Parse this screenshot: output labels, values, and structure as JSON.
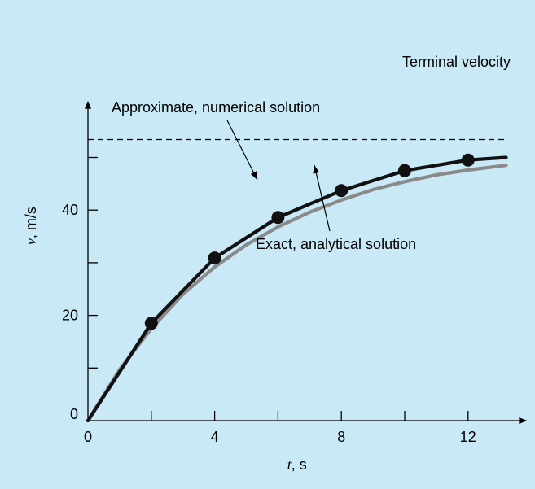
{
  "chart_data": {
    "type": "line",
    "xlabel_var": "t",
    "xlabel_unit": ", s",
    "ylabel_var": "v",
    "ylabel_unit": ", m/s",
    "xlim": [
      0,
      13.3
    ],
    "ylim": [
      0,
      58
    ],
    "x_ticks": [
      2,
      4,
      6,
      8,
      10,
      12
    ],
    "x_tick_labels": [
      "0",
      "4",
      "8",
      "12"
    ],
    "x_tick_label_values": [
      0,
      4,
      8,
      12
    ],
    "y_ticks": [
      10,
      20,
      30,
      40,
      50
    ],
    "y_tick_labels": [
      "0",
      "20",
      "40"
    ],
    "y_tick_label_values": [
      0,
      20,
      40
    ],
    "terminal_velocity": 53.4,
    "series": [
      {
        "name": "Approximate, numerical solution",
        "style": "line-with-markers",
        "color": "#111111",
        "x": [
          0,
          2,
          4,
          6,
          8,
          10,
          12,
          13.2
        ],
        "y": [
          0,
          18.5,
          30.9,
          38.6,
          43.7,
          47.5,
          49.5,
          50.0
        ]
      },
      {
        "name": "Exact, analytical solution",
        "style": "smooth-line",
        "color": "#8a8a8a",
        "x": [
          0,
          1,
          2,
          3,
          4,
          5,
          6,
          7,
          8,
          9,
          10,
          11,
          12,
          13.2
        ],
        "y": [
          0,
          9.7,
          17.5,
          24.0,
          29.2,
          33.4,
          36.8,
          39.6,
          41.9,
          43.9,
          45.4,
          46.7,
          47.6,
          48.5
        ]
      }
    ],
    "annotations": {
      "terminal": "Terminal velocity",
      "approx": "Approximate, numerical solution",
      "exact": "Exact, analytical solution"
    },
    "colors": {
      "background": "#c9e9f7",
      "approx": "#111111",
      "exact": "#8a8a8a",
      "axis": "#000000"
    }
  }
}
